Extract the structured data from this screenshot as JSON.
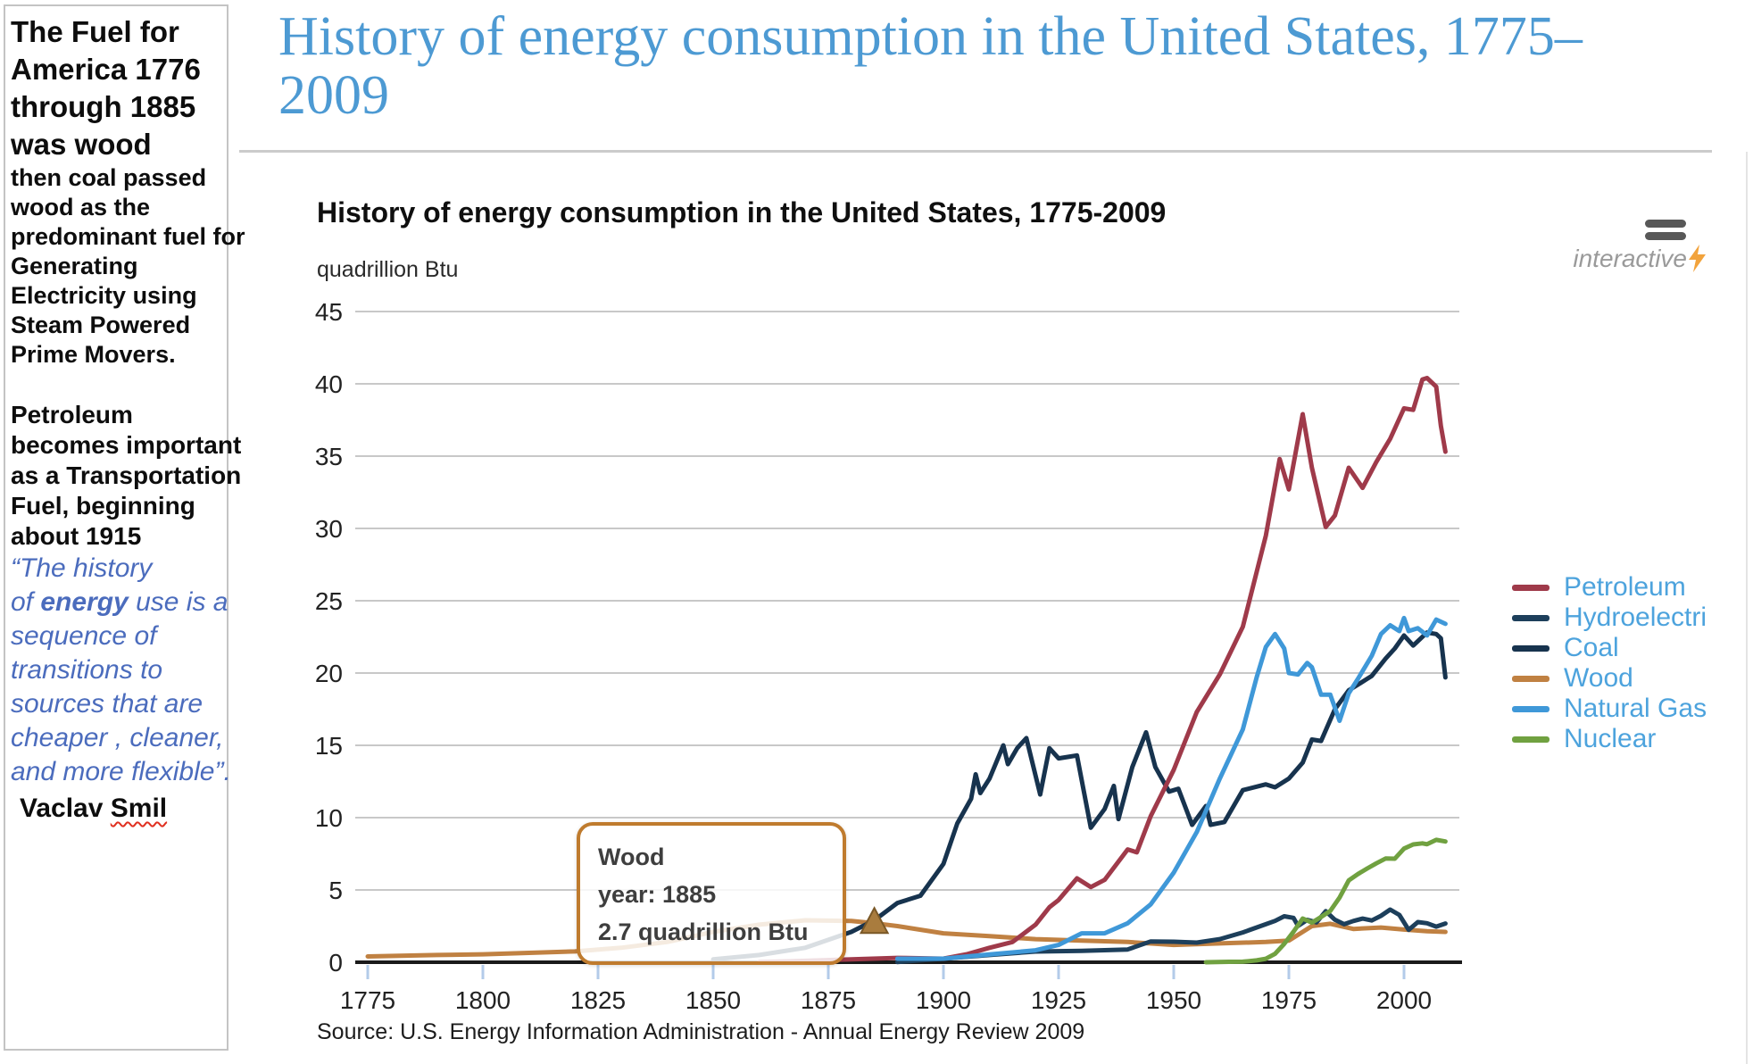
{
  "sidebar": {
    "headline": "The Fuel for\nAmerica 1776\nthrough 1885\nwas wood",
    "body1": "then coal passed\nwood as the\npredominant fuel for\nGenerating\nElectricity using\nSteam Powered\nPrime Movers.",
    "body2": "Petroleum\nbecomes important\nas a Transportation\nFuel, beginning\nabout 1915",
    "quote_pre": "“The history\nof ",
    "quote_bold": "energy",
    "quote_post": " use is a\nsequence of\ntransitions to\nsources that are\ncheaper , cleaner,\nand more flexible”.",
    "author_first": "Vaclav ",
    "author_last": "Smil"
  },
  "header": {
    "title": "History of energy consumption in the United States, 1775–\n2009"
  },
  "chart": {
    "title": "History of energy consumption in the United States, 1775-2009",
    "unit_label": "quadrillion Btu",
    "interactive_label": "interactive",
    "source": "Source: U.S. Energy Information Administration - Annual Energy Review 2009"
  },
  "tooltip": {
    "series": "Wood",
    "year_line": "year: 1885",
    "value_line": "2.7 quadrillion Btu",
    "year": 1885,
    "value": 2.7
  },
  "chart_data": {
    "type": "line",
    "title": "History of energy consumption in the United States, 1775-2009",
    "xlabel": "",
    "ylabel": "quadrillion Btu",
    "xlim": [
      1775,
      2009
    ],
    "ylim": [
      0,
      45
    ],
    "x_ticks": [
      1775,
      1800,
      1825,
      1850,
      1875,
      1900,
      1925,
      1950,
      1975,
      2000
    ],
    "y_ticks": [
      0,
      5,
      10,
      15,
      20,
      25,
      30,
      35,
      40,
      45
    ],
    "grid": true,
    "legend_position": "right",
    "marker": {
      "series": "Wood",
      "year": 1885,
      "value": 2.7,
      "color": "#a97c3e"
    },
    "legend_items": [
      {
        "label": "Petroleum",
        "color": "#9f3a4a"
      },
      {
        "label": "Hydroelectri",
        "color": "#1d3f5b"
      },
      {
        "label": "Coal",
        "color": "#17334e"
      },
      {
        "label": "Wood",
        "color": "#c08142"
      },
      {
        "label": "Natural Gas",
        "color": "#3f98d8"
      },
      {
        "label": "Nuclear",
        "color": "#70a140"
      }
    ],
    "series": [
      {
        "name": "Wood",
        "color": "#c08142",
        "points": [
          [
            1775,
            0.4
          ],
          [
            1790,
            0.5
          ],
          [
            1800,
            0.55
          ],
          [
            1810,
            0.65
          ],
          [
            1820,
            0.75
          ],
          [
            1830,
            1.0
          ],
          [
            1840,
            1.4
          ],
          [
            1850,
            2.1
          ],
          [
            1860,
            2.6
          ],
          [
            1870,
            2.9
          ],
          [
            1880,
            2.85
          ],
          [
            1885,
            2.7
          ],
          [
            1890,
            2.5
          ],
          [
            1900,
            2.0
          ],
          [
            1910,
            1.8
          ],
          [
            1920,
            1.6
          ],
          [
            1930,
            1.5
          ],
          [
            1940,
            1.4
          ],
          [
            1950,
            1.2
          ],
          [
            1960,
            1.3
          ],
          [
            1970,
            1.4
          ],
          [
            1975,
            1.5
          ],
          [
            1980,
            2.5
          ],
          [
            1984,
            2.66
          ],
          [
            1989,
            2.3
          ],
          [
            1995,
            2.4
          ],
          [
            2000,
            2.26
          ],
          [
            2005,
            2.14
          ],
          [
            2009,
            2.1
          ]
        ]
      },
      {
        "name": "Hydroelectric",
        "color": "#1d3f5b",
        "points": [
          [
            1890,
            0.02
          ],
          [
            1900,
            0.25
          ],
          [
            1910,
            0.5
          ],
          [
            1920,
            0.74
          ],
          [
            1930,
            0.79
          ],
          [
            1940,
            0.88
          ],
          [
            1945,
            1.44
          ],
          [
            1950,
            1.42
          ],
          [
            1955,
            1.36
          ],
          [
            1960,
            1.6
          ],
          [
            1965,
            2.06
          ],
          [
            1970,
            2.63
          ],
          [
            1972,
            2.86
          ],
          [
            1974,
            3.18
          ],
          [
            1976,
            3.07
          ],
          [
            1977,
            2.51
          ],
          [
            1979,
            2.93
          ],
          [
            1981,
            2.76
          ],
          [
            1983,
            3.53
          ],
          [
            1985,
            2.94
          ],
          [
            1987,
            2.63
          ],
          [
            1989,
            2.85
          ],
          [
            1991,
            3.02
          ],
          [
            1993,
            2.89
          ],
          [
            1995,
            3.21
          ],
          [
            1997,
            3.64
          ],
          [
            1999,
            3.27
          ],
          [
            2001,
            2.24
          ],
          [
            2003,
            2.78
          ],
          [
            2005,
            2.7
          ],
          [
            2007,
            2.46
          ],
          [
            2009,
            2.68
          ]
        ]
      },
      {
        "name": "Coal",
        "color": "#17334e",
        "points": [
          [
            1850,
            0.2
          ],
          [
            1860,
            0.5
          ],
          [
            1870,
            1.0
          ],
          [
            1880,
            2.1
          ],
          [
            1885,
            2.9
          ],
          [
            1890,
            4.1
          ],
          [
            1895,
            4.6
          ],
          [
            1900,
            6.8
          ],
          [
            1903,
            9.6
          ],
          [
            1906,
            11.3
          ],
          [
            1907,
            13.0
          ],
          [
            1908,
            11.7
          ],
          [
            1910,
            12.7
          ],
          [
            1913,
            15.0
          ],
          [
            1914,
            13.7
          ],
          [
            1916,
            14.8
          ],
          [
            1918,
            15.5
          ],
          [
            1921,
            11.6
          ],
          [
            1923,
            14.8
          ],
          [
            1925,
            14.1
          ],
          [
            1927,
            14.2
          ],
          [
            1929,
            14.3
          ],
          [
            1932,
            9.3
          ],
          [
            1935,
            10.6
          ],
          [
            1937,
            12.2
          ],
          [
            1938,
            9.9
          ],
          [
            1941,
            13.5
          ],
          [
            1944,
            15.9
          ],
          [
            1946,
            13.5
          ],
          [
            1949,
            11.8
          ],
          [
            1951,
            12.0
          ],
          [
            1954,
            9.5
          ],
          [
            1957,
            10.8
          ],
          [
            1958,
            9.5
          ],
          [
            1961,
            9.7
          ],
          [
            1965,
            11.9
          ],
          [
            1970,
            12.3
          ],
          [
            1972,
            12.1
          ],
          [
            1975,
            12.7
          ],
          [
            1978,
            13.8
          ],
          [
            1980,
            15.4
          ],
          [
            1982,
            15.3
          ],
          [
            1985,
            17.5
          ],
          [
            1988,
            18.8
          ],
          [
            1990,
            19.2
          ],
          [
            1993,
            19.8
          ],
          [
            1996,
            21.0
          ],
          [
            1998,
            21.7
          ],
          [
            2000,
            22.6
          ],
          [
            2002,
            21.9
          ],
          [
            2005,
            22.8
          ],
          [
            2007,
            22.7
          ],
          [
            2008,
            22.4
          ],
          [
            2009,
            19.7
          ]
        ]
      },
      {
        "name": "Petroleum",
        "color": "#9f3a4a",
        "points": [
          [
            1860,
            0.01
          ],
          [
            1870,
            0.1
          ],
          [
            1880,
            0.2
          ],
          [
            1890,
            0.3
          ],
          [
            1900,
            0.25
          ],
          [
            1905,
            0.55
          ],
          [
            1910,
            1.0
          ],
          [
            1915,
            1.4
          ],
          [
            1920,
            2.6
          ],
          [
            1923,
            3.8
          ],
          [
            1925,
            4.3
          ],
          [
            1929,
            5.8
          ],
          [
            1932,
            5.2
          ],
          [
            1935,
            5.7
          ],
          [
            1940,
            7.8
          ],
          [
            1942,
            7.6
          ],
          [
            1945,
            10.1
          ],
          [
            1950,
            13.3
          ],
          [
            1955,
            17.3
          ],
          [
            1960,
            19.9
          ],
          [
            1965,
            23.2
          ],
          [
            1970,
            29.5
          ],
          [
            1973,
            34.8
          ],
          [
            1975,
            32.7
          ],
          [
            1978,
            37.9
          ],
          [
            1980,
            34.2
          ],
          [
            1983,
            30.1
          ],
          [
            1985,
            30.9
          ],
          [
            1988,
            34.2
          ],
          [
            1991,
            32.8
          ],
          [
            1994,
            34.6
          ],
          [
            1997,
            36.2
          ],
          [
            2000,
            38.3
          ],
          [
            2002,
            38.2
          ],
          [
            2004,
            40.3
          ],
          [
            2005,
            40.4
          ],
          [
            2007,
            39.8
          ],
          [
            2008,
            37.1
          ],
          [
            2009,
            35.3
          ]
        ]
      },
      {
        "name": "Natural Gas",
        "color": "#3f98d8",
        "points": [
          [
            1890,
            0.25
          ],
          [
            1900,
            0.25
          ],
          [
            1910,
            0.54
          ],
          [
            1920,
            0.83
          ],
          [
            1925,
            1.2
          ],
          [
            1930,
            2.0
          ],
          [
            1935,
            2.0
          ],
          [
            1940,
            2.7
          ],
          [
            1945,
            4.0
          ],
          [
            1950,
            6.2
          ],
          [
            1955,
            9.0
          ],
          [
            1960,
            12.7
          ],
          [
            1965,
            16.1
          ],
          [
            1968,
            19.7
          ],
          [
            1970,
            21.8
          ],
          [
            1972,
            22.7
          ],
          [
            1974,
            21.7
          ],
          [
            1975,
            20.0
          ],
          [
            1977,
            19.9
          ],
          [
            1979,
            20.7
          ],
          [
            1980,
            20.4
          ],
          [
            1982,
            18.5
          ],
          [
            1984,
            18.5
          ],
          [
            1986,
            16.7
          ],
          [
            1988,
            18.6
          ],
          [
            1990,
            19.6
          ],
          [
            1993,
            21.2
          ],
          [
            1995,
            22.7
          ],
          [
            1997,
            23.3
          ],
          [
            1999,
            22.9
          ],
          [
            2000,
            23.8
          ],
          [
            2001,
            22.9
          ],
          [
            2003,
            23.1
          ],
          [
            2005,
            22.6
          ],
          [
            2007,
            23.7
          ],
          [
            2009,
            23.4
          ]
        ]
      },
      {
        "name": "Nuclear",
        "color": "#70a140",
        "points": [
          [
            1957,
            0.0
          ],
          [
            1962,
            0.03
          ],
          [
            1965,
            0.04
          ],
          [
            1968,
            0.13
          ],
          [
            1970,
            0.24
          ],
          [
            1972,
            0.58
          ],
          [
            1974,
            1.27
          ],
          [
            1976,
            2.11
          ],
          [
            1978,
            3.02
          ],
          [
            1980,
            2.74
          ],
          [
            1982,
            3.13
          ],
          [
            1984,
            3.55
          ],
          [
            1986,
            4.47
          ],
          [
            1988,
            5.66
          ],
          [
            1990,
            6.1
          ],
          [
            1992,
            6.48
          ],
          [
            1994,
            6.84
          ],
          [
            1996,
            7.17
          ],
          [
            1998,
            7.16
          ],
          [
            2000,
            7.86
          ],
          [
            2002,
            8.15
          ],
          [
            2004,
            8.22
          ],
          [
            2005,
            8.16
          ],
          [
            2007,
            8.46
          ],
          [
            2009,
            8.35
          ]
        ]
      }
    ]
  }
}
